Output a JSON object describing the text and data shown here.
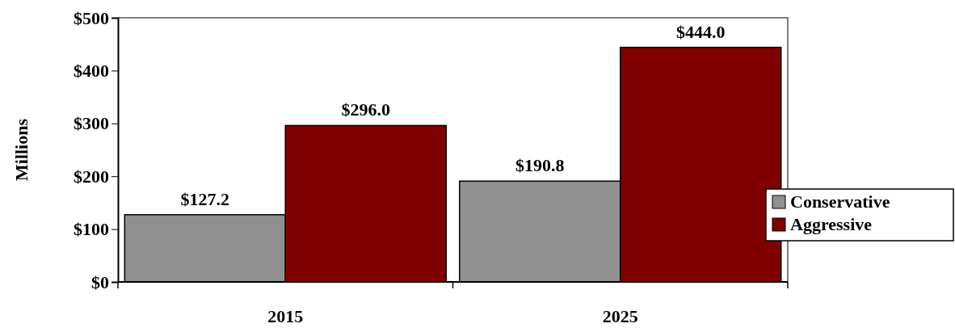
{
  "chart_data": {
    "type": "bar",
    "ylabel": "Millions",
    "categories": [
      "2015",
      "2025"
    ],
    "series": [
      {
        "name": "Conservative",
        "color": "#909090",
        "values": [
          127.2,
          190.8
        ],
        "value_labels": [
          "$127.2",
          "$190.8"
        ]
      },
      {
        "name": "Aggressive",
        "color": "#800000",
        "values": [
          296.0,
          444.0
        ],
        "value_labels": [
          "$296.0",
          "$444.0"
        ]
      }
    ],
    "ylim": [
      0,
      500
    ],
    "yticks": [
      {
        "value": 0,
        "label": "$0"
      },
      {
        "value": 100,
        "label": "$100"
      },
      {
        "value": 200,
        "label": "$200"
      },
      {
        "value": 300,
        "label": "$300"
      },
      {
        "value": 400,
        "label": "$400"
      },
      {
        "value": 500,
        "label": "$500"
      }
    ],
    "grid": false,
    "legend": "right"
  }
}
